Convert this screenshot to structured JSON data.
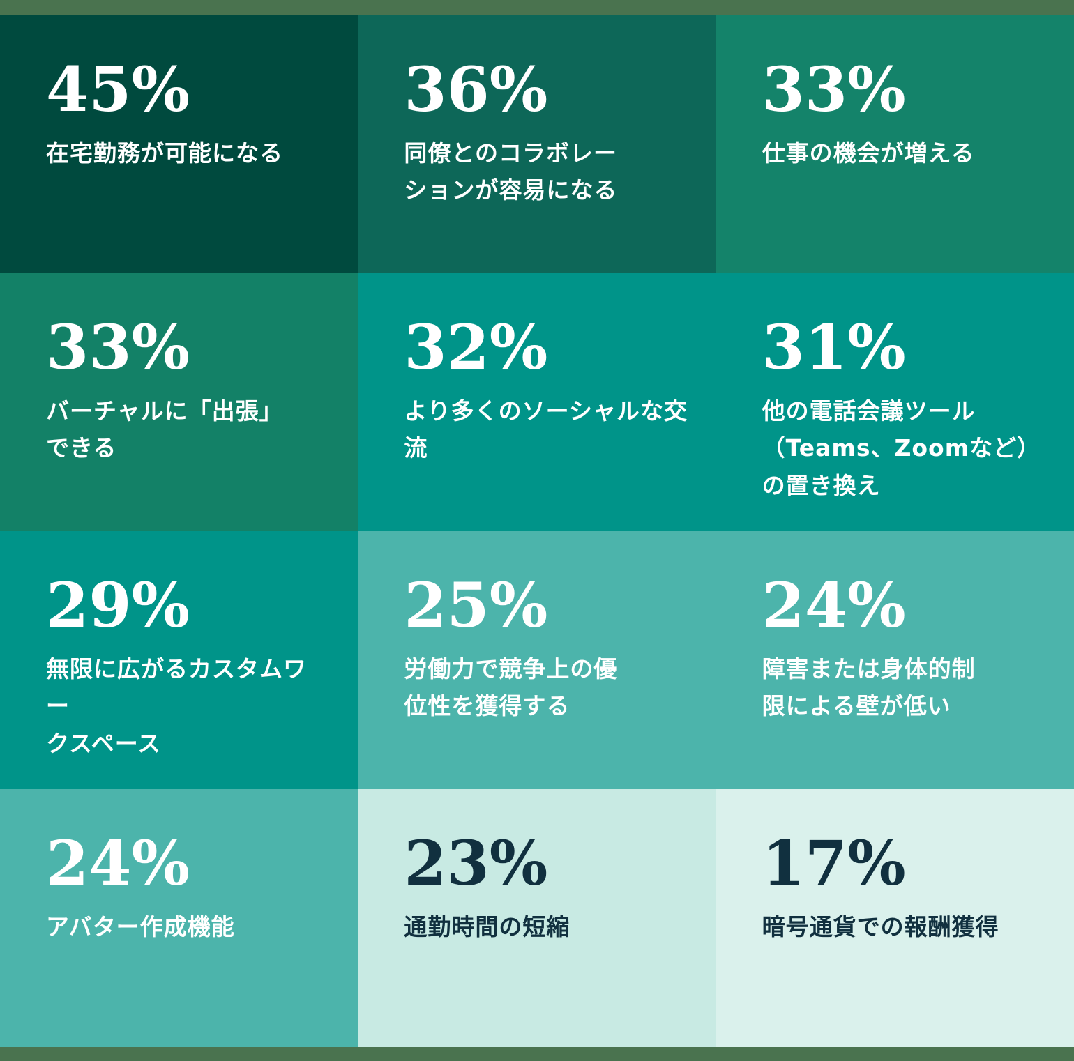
{
  "theme": {
    "frame_strip_color": "#4A734F",
    "text_light": "#FFFFFF",
    "text_dark": "#11303F"
  },
  "grid": {
    "tiles": [
      {
        "value": "45%",
        "label": "在宅勤務が可能になる",
        "bg": "#004A3E",
        "text": "light"
      },
      {
        "value": "36%",
        "label": "同僚とのコラボレー\nションが容易になる",
        "bg": "#0D6758",
        "text": "light"
      },
      {
        "value": "33%",
        "label": "仕事の機会が増える",
        "bg": "#14836A",
        "text": "light"
      },
      {
        "value": "33%",
        "label": "バーチャルに「出張」\nできる",
        "bg": "#138167",
        "text": "light"
      },
      {
        "value": "32%",
        "label": "より多くのソーシャルな交流",
        "bg": "#009489",
        "text": "light"
      },
      {
        "value": "31%",
        "label": "他の電話会議ツール\n（Teams、Zoomなど）\nの置き換え",
        "bg": "#009489",
        "text": "light"
      },
      {
        "value": "29%",
        "label": "無限に広がるカスタムワー\nクスペース",
        "bg": "#009489",
        "text": "light"
      },
      {
        "value": "25%",
        "label": "労働力で競争上の優\n位性を獲得する",
        "bg": "#4CB4AB",
        "text": "light"
      },
      {
        "value": "24%",
        "label": "障害または身体的制\n限による壁が低い",
        "bg": "#4CB4AB",
        "text": "light"
      },
      {
        "value": "24%",
        "label": "アバター作成機能",
        "bg": "#4CB4AB",
        "text": "light"
      },
      {
        "value": "23%",
        "label": "通勤時間の短縮",
        "bg": "#C8EAE3",
        "text": "dark"
      },
      {
        "value": "17%",
        "label": "暗号通貨での報酬獲得",
        "bg": "#DAF1EC",
        "text": "dark"
      }
    ]
  },
  "chart_data": {
    "type": "table",
    "title": "",
    "unit": "%",
    "layout": "4x3 stat-tile grid, diagonal dark-to-light teal gradient, light sage frame strips top and bottom",
    "categories": [
      "在宅勤務が可能になる",
      "同僚とのコラボレーションが容易になる",
      "仕事の機会が増える",
      "バーチャルに「出張」できる",
      "より多くのソーシャルな交流",
      "他の電話会議ツール（Teams、Zoomなど）の置き換え",
      "無限に広がるカスタムワークスペース",
      "労働力で競争上の優位性を獲得する",
      "障害または身体的制限による壁が低い",
      "アバター作成機能",
      "通勤時間の短縮",
      "暗号通貨での報酬獲得"
    ],
    "values": [
      45,
      36,
      33,
      33,
      32,
      31,
      29,
      25,
      24,
      24,
      23,
      17
    ],
    "palette": [
      "#004A3E",
      "#0D6758",
      "#14836A",
      "#138167",
      "#009489",
      "#009489",
      "#009489",
      "#4CB4AB",
      "#4CB4AB",
      "#4CB4AB",
      "#C8EAE3",
      "#DAF1EC"
    ]
  }
}
